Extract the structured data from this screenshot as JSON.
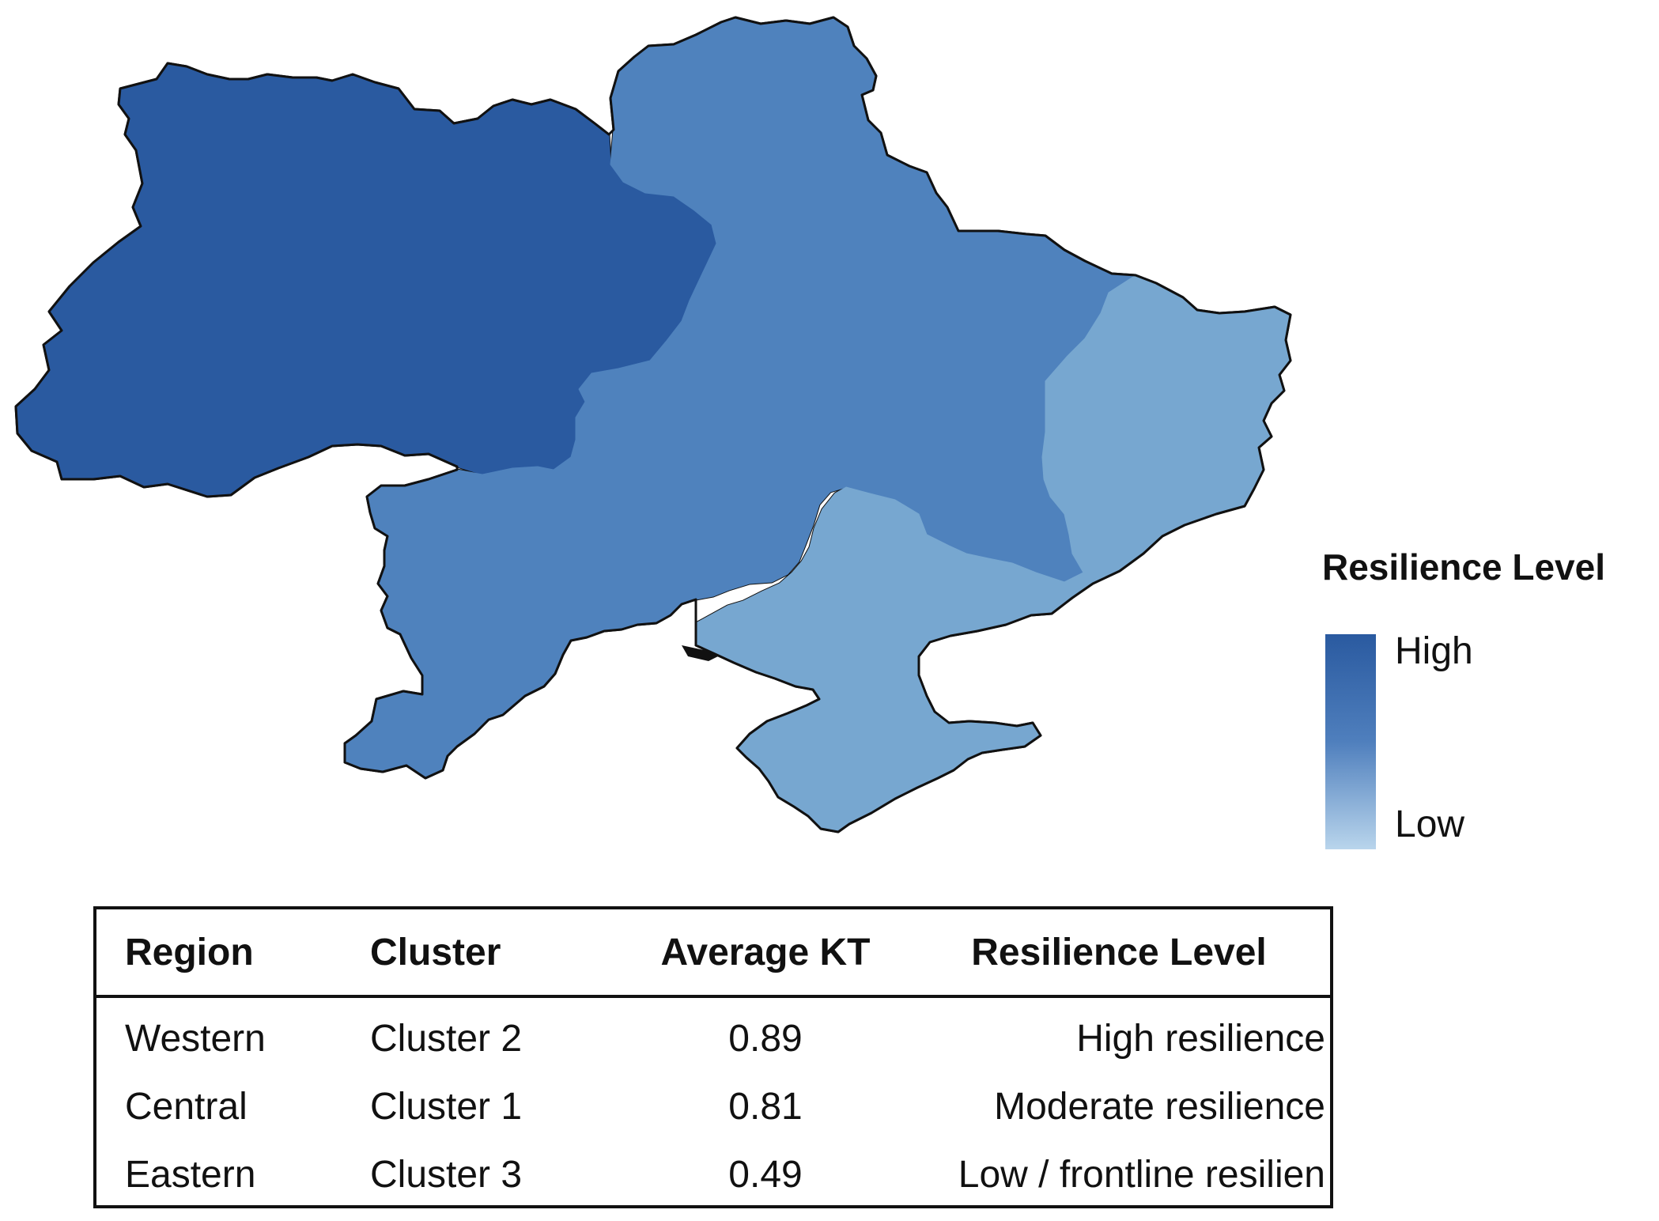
{
  "map": {
    "regions": [
      {
        "name": "Western",
        "level": "high",
        "color": "#2a5aa0"
      },
      {
        "name": "Central",
        "level": "moderate",
        "color": "#4f82bd"
      },
      {
        "name": "Eastern",
        "level": "low",
        "color": "#77a7d0"
      }
    ],
    "outline_color": "#111111"
  },
  "legend": {
    "title": "Resilience Level",
    "high_label": "High",
    "low_label": "Low",
    "colors": {
      "high": "#2a5aa0",
      "low": "#b9d5ec"
    }
  },
  "table": {
    "headers": [
      "Region",
      "Cluster",
      "Average KT",
      "Resilience Level"
    ],
    "rows": [
      {
        "region": "Western",
        "cluster": "Cluster 2",
        "avg_kt": "0.89",
        "resilience": "High resilience"
      },
      {
        "region": "Central",
        "cluster": "Cluster 1",
        "avg_kt": "0.81",
        "resilience": "Moderate resilience"
      },
      {
        "region": "Eastern",
        "cluster": "Cluster 3",
        "avg_kt": "0.49",
        "resilience": "Low / frontline resilien"
      }
    ]
  }
}
